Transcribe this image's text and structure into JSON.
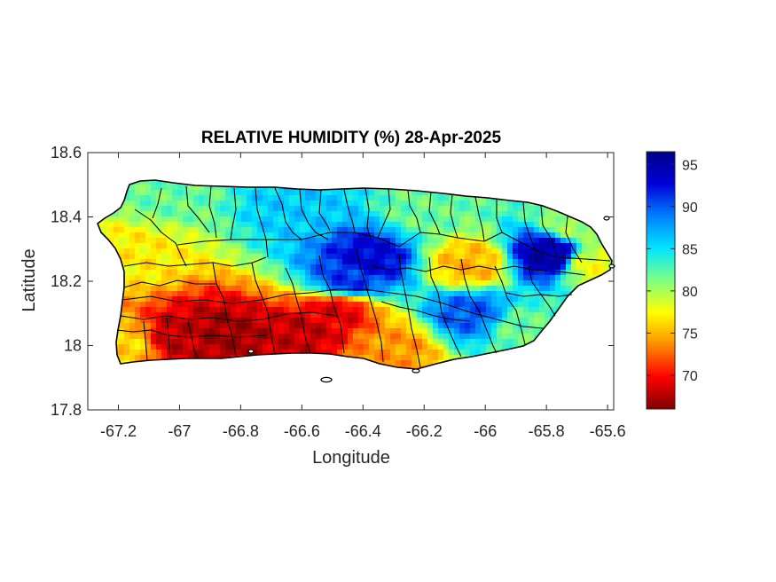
{
  "chart_data": {
    "type": "heatmap",
    "title": "RELATIVE HUMIDITY (%) 28-Apr-2025",
    "xlabel": "Longitude",
    "ylabel": "Latitude",
    "xlim": [
      -67.3,
      -65.58
    ],
    "ylim": [
      17.8,
      18.6
    ],
    "xticks": [
      -67.2,
      -67,
      -66.8,
      -66.6,
      -66.4,
      -66.2,
      -66,
      -65.8,
      -65.6
    ],
    "xtick_labels": [
      "-67.2",
      "-67",
      "-66.8",
      "-66.6",
      "-66.4",
      "-66.2",
      "-66",
      "-65.8",
      "-65.6"
    ],
    "yticks": [
      17.8,
      18,
      18.2,
      18.4,
      18.6
    ],
    "ytick_labels": [
      "17.8",
      "18",
      "18.2",
      "18.4",
      "18.6"
    ],
    "colorbar": {
      "range": [
        66,
        96.5
      ],
      "ticks": [
        70,
        75,
        80,
        85,
        90,
        95
      ],
      "tick_labels": [
        "70",
        "75",
        "80",
        "85",
        "90",
        "95"
      ],
      "colormap": "jet-reversed",
      "stops": [
        "#7f0000",
        "#ff0000",
        "#ff8c00",
        "#ffff00",
        "#80ff80",
        "#00e5ff",
        "#0080ff",
        "#0000d8",
        "#00008b"
      ]
    },
    "region": "Puerto Rico with municipality boundaries",
    "field_features": [
      {
        "lon": -66.85,
        "lat": 18.03,
        "value": 67
      },
      {
        "lon": -66.6,
        "lat": 18.04,
        "value": 68
      },
      {
        "lon": -67.0,
        "lat": 18.02,
        "value": 68
      },
      {
        "lon": -66.48,
        "lat": 18.11,
        "value": 69
      },
      {
        "lon": -66.3,
        "lat": 17.99,
        "value": 74
      },
      {
        "lon": -67.18,
        "lat": 18.0,
        "value": 76
      },
      {
        "lon": -67.15,
        "lat": 18.28,
        "value": 77
      },
      {
        "lon": -67.05,
        "lat": 18.48,
        "value": 82
      },
      {
        "lon": -66.6,
        "lat": 18.43,
        "value": 86
      },
      {
        "lon": -66.38,
        "lat": 18.27,
        "value": 93
      },
      {
        "lon": -66.45,
        "lat": 18.2,
        "value": 91
      },
      {
        "lon": -66.05,
        "lat": 18.1,
        "value": 90
      },
      {
        "lon": -65.79,
        "lat": 18.28,
        "value": 95
      },
      {
        "lon": -66.05,
        "lat": 18.25,
        "value": 75
      },
      {
        "lon": -65.88,
        "lat": 18.05,
        "value": 82
      },
      {
        "lon": -65.7,
        "lat": 18.38,
        "value": 80
      },
      {
        "lon": -66.2,
        "lat": 18.42,
        "value": 82
      },
      {
        "lon": -65.65,
        "lat": 18.25,
        "value": 78
      }
    ]
  }
}
